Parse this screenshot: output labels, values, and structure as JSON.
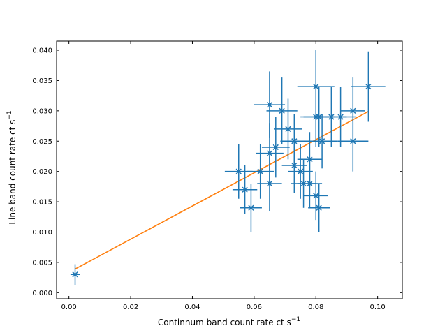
{
  "chart_data": {
    "type": "scatter",
    "xlabel": "Continnum band count rate ct s",
    "xlabel_exponent": "−1",
    "ylabel": "Line band count rate ct s",
    "ylabel_exponent": "−1",
    "xlim": [
      -0.004,
      0.108
    ],
    "ylim": [
      -0.001,
      0.0415
    ],
    "x_ticks": [
      0.0,
      0.02,
      0.04,
      0.06,
      0.08,
      0.1
    ],
    "x_tick_labels": [
      "0.00",
      "0.02",
      "0.04",
      "0.06",
      "0.08",
      "0.10"
    ],
    "y_ticks": [
      0.0,
      0.005,
      0.01,
      0.015,
      0.02,
      0.025,
      0.03,
      0.035,
      0.04
    ],
    "y_tick_labels": [
      "0.000",
      "0.005",
      "0.010",
      "0.015",
      "0.020",
      "0.025",
      "0.030",
      "0.035",
      "0.040"
    ],
    "grid": false,
    "data_color": "#1f77b4",
    "fit_color": "#ff7f0e",
    "points": [
      {
        "x": 0.002,
        "y": 0.003,
        "xerr": 0.0015,
        "yerr": 0.0017
      },
      {
        "x": 0.055,
        "y": 0.02,
        "xerr": 0.0045,
        "yerr": 0.0045
      },
      {
        "x": 0.057,
        "y": 0.017,
        "xerr": 0.004,
        "yerr": 0.004
      },
      {
        "x": 0.059,
        "y": 0.014,
        "xerr": 0.0035,
        "yerr": 0.004
      },
      {
        "x": 0.062,
        "y": 0.02,
        "xerr": 0.0045,
        "yerr": 0.0045
      },
      {
        "x": 0.065,
        "y": 0.031,
        "xerr": 0.005,
        "yerr": 0.0055
      },
      {
        "x": 0.065,
        "y": 0.023,
        "xerr": 0.0045,
        "yerr": 0.005
      },
      {
        "x": 0.065,
        "y": 0.018,
        "xerr": 0.004,
        "yerr": 0.0045
      },
      {
        "x": 0.067,
        "y": 0.024,
        "xerr": 0.0045,
        "yerr": 0.005
      },
      {
        "x": 0.069,
        "y": 0.03,
        "xerr": 0.005,
        "yerr": 0.0055
      },
      {
        "x": 0.071,
        "y": 0.027,
        "xerr": 0.0045,
        "yerr": 0.005
      },
      {
        "x": 0.073,
        "y": 0.025,
        "xerr": 0.0045,
        "yerr": 0.0045
      },
      {
        "x": 0.073,
        "y": 0.021,
        "xerr": 0.004,
        "yerr": 0.0045
      },
      {
        "x": 0.075,
        "y": 0.02,
        "xerr": 0.004,
        "yerr": 0.0045
      },
      {
        "x": 0.076,
        "y": 0.018,
        "xerr": 0.004,
        "yerr": 0.004
      },
      {
        "x": 0.078,
        "y": 0.022,
        "xerr": 0.004,
        "yerr": 0.0045
      },
      {
        "x": 0.078,
        "y": 0.018,
        "xerr": 0.004,
        "yerr": 0.004
      },
      {
        "x": 0.08,
        "y": 0.034,
        "xerr": 0.006,
        "yerr": 0.006
      },
      {
        "x": 0.08,
        "y": 0.029,
        "xerr": 0.005,
        "yerr": 0.005
      },
      {
        "x": 0.08,
        "y": 0.016,
        "xerr": 0.004,
        "yerr": 0.004
      },
      {
        "x": 0.081,
        "y": 0.014,
        "xerr": 0.0035,
        "yerr": 0.004
      },
      {
        "x": 0.081,
        "y": 0.029,
        "xerr": 0.005,
        "yerr": 0.005
      },
      {
        "x": 0.082,
        "y": 0.025,
        "xerr": 0.005,
        "yerr": 0.0045
      },
      {
        "x": 0.085,
        "y": 0.029,
        "xerr": 0.005,
        "yerr": 0.005
      },
      {
        "x": 0.088,
        "y": 0.029,
        "xerr": 0.005,
        "yerr": 0.005
      },
      {
        "x": 0.092,
        "y": 0.03,
        "xerr": 0.004,
        "yerr": 0.0055
      },
      {
        "x": 0.092,
        "y": 0.025,
        "xerr": 0.005,
        "yerr": 0.005
      },
      {
        "x": 0.097,
        "y": 0.034,
        "xerr": 0.0055,
        "yerr": 0.0058
      }
    ],
    "fit_line": {
      "x": [
        0.002,
        0.097
      ],
      "y": [
        0.0039,
        0.0299
      ]
    }
  }
}
